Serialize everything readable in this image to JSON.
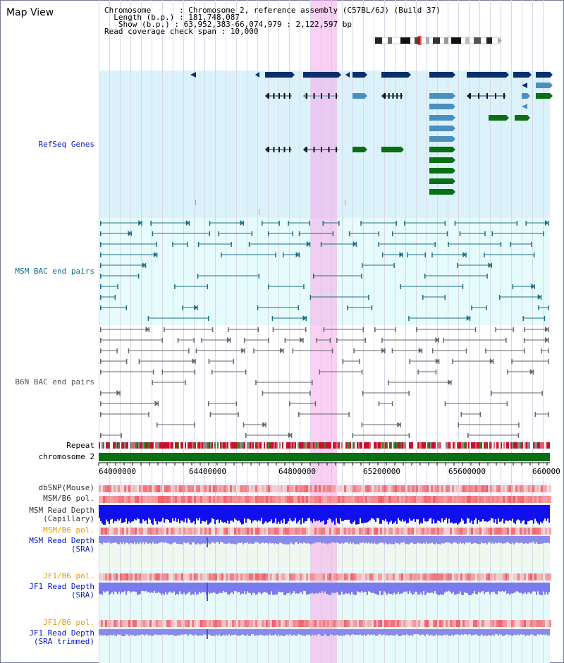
{
  "view_title": "Map View",
  "info_lines": [
    "Chromosome      : Chromosome 2, reference assembly (C57BL/6J) (Build 37)",
    "  Length (b.p.) : 181,748,087",
    "   Show (b.p.) : 63,952,383-66,074,979 : 2,122,597 bp",
    "Read coverage check span : 10,000"
  ],
  "tracks": {
    "refseq": "RefSeq Genes",
    "msm_bac": "MSM BAC end pairs",
    "b6n_bac": "B6N BAC end pairs",
    "repeat": "Repeat",
    "chromosome": "chromosome 2",
    "dbsnp": "dbSNP(Mouse)",
    "msm_b6_pol": "MSM/B6 pol.",
    "msm_depth_cap": "MSM Read Depth\n(Capillary)",
    "msm_b6_pol2": "MSM/B6 pol.",
    "msm_depth_sra": "MSM Read Depth\n(SRA)",
    "jf1_b6_pol": "JF1/B6 pol.",
    "jf1_depth_sra": "JF1 Read Depth\n(SRA)",
    "jf1_b6_pol2": "JF1/B6 pol.",
    "jf1_depth_trim": "JF1 Read Depth\n(SRA trimmed)"
  },
  "axis_ticks": [
    "64000000",
    "64400000",
    "64800000",
    "65200000",
    "65600000",
    "660000"
  ],
  "colors": {
    "refseq_bg": "#dcf2fb",
    "msm_bg": "#e6fbfb",
    "highlight": "#f5aaeb",
    "gene_dark": "#0b2f6b",
    "gene_mid": "#4a8fbd",
    "gene_green": "#0a6e12",
    "msm_pair": "#1f6f86",
    "b6n_pair": "#666666",
    "chromosome_bar": "#0a6e12",
    "label_blue": "#0018c0",
    "label_teal": "#0a6f86",
    "label_gray": "#555555",
    "label_orange": "#e89a00"
  }
}
